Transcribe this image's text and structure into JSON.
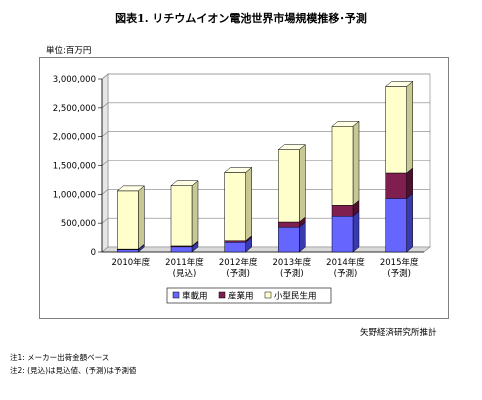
{
  "title": "図表1. リチウムイオン電池世界市場規模推移･予測",
  "unit_label": "単位:百万円",
  "source": "矢野経済研究所推計",
  "notes": [
    "注1: メーカー出荷金額ベース",
    "注2: (見込)は見込値、(予測)は予測値"
  ],
  "colors": {
    "vehicle": "#6666ff",
    "industrial": "#7f1f4f",
    "consumer": "#ffffcc"
  },
  "chart_data": {
    "type": "bar",
    "stacked": true,
    "style": "3d",
    "categories": [
      [
        "2010年度",
        ""
      ],
      [
        "2011年度",
        "(見込)"
      ],
      [
        "2012年度",
        "(予測)"
      ],
      [
        "2013年度",
        "(予測)"
      ],
      [
        "2014年度",
        "(予測)"
      ],
      [
        "2015年度",
        "(予測)"
      ]
    ],
    "series": [
      {
        "name": "車載用",
        "values": [
          40000,
          90000,
          170000,
          430000,
          620000,
          930000
        ]
      },
      {
        "name": "産業用",
        "values": [
          10000,
          15000,
          25000,
          90000,
          190000,
          440000
        ]
      },
      {
        "name": "小型民生用",
        "values": [
          1010000,
          1045000,
          1185000,
          1255000,
          1370000,
          1500000
        ]
      }
    ],
    "yticks": [
      "0",
      "500,000",
      "1,000,000",
      "1,500,000",
      "2,000,000",
      "2,500,000",
      "3,000,000"
    ],
    "ylim": [
      0,
      3000000
    ],
    "grid": true,
    "legend": "bottom"
  }
}
